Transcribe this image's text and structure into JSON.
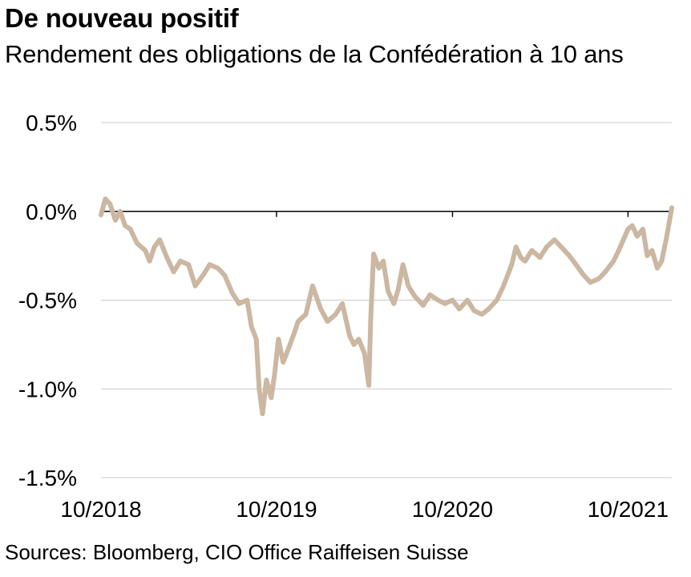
{
  "title": "De nouveau positif",
  "subtitle": "Rendement des obligations de la Confédération à 10 ans",
  "source": "Sources: Bloomberg, CIO Office Raiffeisen Suisse",
  "colors": {
    "line": "#cbb7a2",
    "grid": "#c9c9c9",
    "zero": "#000000"
  },
  "chart_data": {
    "type": "line",
    "title": "De nouveau positif",
    "subtitle": "Rendement des obligations de la Confédération à 10 ans",
    "xlabel": "",
    "ylabel": "",
    "ylim": [
      -1.5,
      0.5
    ],
    "yticks": [
      0.5,
      0.0,
      -0.5,
      -1.0,
      -1.5
    ],
    "ytick_labels": [
      "0.5%",
      "0.0%",
      "-0.5%",
      "-1.0%",
      "-1.5%"
    ],
    "xticks": [
      "10/2018",
      "10/2019",
      "10/2020",
      "10/2021"
    ],
    "grid": "horizontal",
    "x_unit": "date",
    "series": [
      {
        "values_by_date": [
          [
            "2018-10-01",
            -0.02
          ],
          [
            "2018-10-10",
            0.07
          ],
          [
            "2018-10-20",
            0.04
          ],
          [
            "2018-10-31",
            -0.05
          ],
          [
            "2018-11-10",
            0.0
          ],
          [
            "2018-11-20",
            -0.08
          ],
          [
            "2018-12-01",
            -0.1
          ],
          [
            "2018-12-15",
            -0.18
          ],
          [
            "2019-01-01",
            -0.22
          ],
          [
            "2019-01-10",
            -0.28
          ],
          [
            "2019-01-20",
            -0.2
          ],
          [
            "2019-01-31",
            -0.16
          ],
          [
            "2019-02-15",
            -0.26
          ],
          [
            "2019-03-01",
            -0.34
          ],
          [
            "2019-03-15",
            -0.28
          ],
          [
            "2019-04-01",
            -0.3
          ],
          [
            "2019-04-15",
            -0.42
          ],
          [
            "2019-05-01",
            -0.36
          ],
          [
            "2019-05-15",
            -0.3
          ],
          [
            "2019-06-01",
            -0.32
          ],
          [
            "2019-06-15",
            -0.36
          ],
          [
            "2019-07-01",
            -0.46
          ],
          [
            "2019-07-15",
            -0.52
          ],
          [
            "2019-08-01",
            -0.5
          ],
          [
            "2019-08-10",
            -0.65
          ],
          [
            "2019-08-20",
            -0.72
          ],
          [
            "2019-08-26",
            -1.0
          ],
          [
            "2019-09-02",
            -1.14
          ],
          [
            "2019-09-10",
            -0.95
          ],
          [
            "2019-09-20",
            -1.05
          ],
          [
            "2019-09-27",
            -0.92
          ],
          [
            "2019-10-05",
            -0.72
          ],
          [
            "2019-10-15",
            -0.85
          ],
          [
            "2019-10-25",
            -0.78
          ],
          [
            "2019-11-05",
            -0.7
          ],
          [
            "2019-11-15",
            -0.62
          ],
          [
            "2019-12-01",
            -0.58
          ],
          [
            "2019-12-15",
            -0.42
          ],
          [
            "2020-01-01",
            -0.55
          ],
          [
            "2020-01-15",
            -0.62
          ],
          [
            "2020-02-01",
            -0.58
          ],
          [
            "2020-02-15",
            -0.52
          ],
          [
            "2020-03-01",
            -0.7
          ],
          [
            "2020-03-10",
            -0.75
          ],
          [
            "2020-03-20",
            -0.72
          ],
          [
            "2020-04-01",
            -0.8
          ],
          [
            "2020-04-10",
            -0.98
          ],
          [
            "2020-04-14",
            -0.6
          ],
          [
            "2020-04-20",
            -0.24
          ],
          [
            "2020-05-01",
            -0.32
          ],
          [
            "2020-05-10",
            -0.28
          ],
          [
            "2020-05-20",
            -0.45
          ],
          [
            "2020-06-01",
            -0.52
          ],
          [
            "2020-06-10",
            -0.44
          ],
          [
            "2020-06-20",
            -0.3
          ],
          [
            "2020-07-01",
            -0.42
          ],
          [
            "2020-07-15",
            -0.48
          ],
          [
            "2020-08-01",
            -0.53
          ],
          [
            "2020-08-15",
            -0.47
          ],
          [
            "2020-09-01",
            -0.5
          ],
          [
            "2020-09-15",
            -0.52
          ],
          [
            "2020-10-01",
            -0.5
          ],
          [
            "2020-10-15",
            -0.55
          ],
          [
            "2020-11-01",
            -0.5
          ],
          [
            "2020-11-15",
            -0.56
          ],
          [
            "2020-12-01",
            -0.58
          ],
          [
            "2020-12-15",
            -0.55
          ],
          [
            "2021-01-01",
            -0.5
          ],
          [
            "2021-01-15",
            -0.42
          ],
          [
            "2021-02-01",
            -0.3
          ],
          [
            "2021-02-10",
            -0.2
          ],
          [
            "2021-02-20",
            -0.26
          ],
          [
            "2021-03-01",
            -0.28
          ],
          [
            "2021-03-15",
            -0.22
          ],
          [
            "2021-04-01",
            -0.26
          ],
          [
            "2021-04-15",
            -0.2
          ],
          [
            "2021-05-01",
            -0.16
          ],
          [
            "2021-05-15",
            -0.2
          ],
          [
            "2021-06-01",
            -0.25
          ],
          [
            "2021-06-15",
            -0.3
          ],
          [
            "2021-07-01",
            -0.36
          ],
          [
            "2021-07-15",
            -0.4
          ],
          [
            "2021-08-01",
            -0.38
          ],
          [
            "2021-08-15",
            -0.34
          ],
          [
            "2021-09-01",
            -0.28
          ],
          [
            "2021-09-15",
            -0.2
          ],
          [
            "2021-10-01",
            -0.1
          ],
          [
            "2021-10-10",
            -0.08
          ],
          [
            "2021-10-20",
            -0.14
          ],
          [
            "2021-11-01",
            -0.1
          ],
          [
            "2021-11-10",
            -0.25
          ],
          [
            "2021-11-20",
            -0.22
          ],
          [
            "2021-12-01",
            -0.32
          ],
          [
            "2021-12-10",
            -0.28
          ],
          [
            "2021-12-20",
            -0.15
          ],
          [
            "2021-12-31",
            0.02
          ]
        ]
      }
    ]
  }
}
